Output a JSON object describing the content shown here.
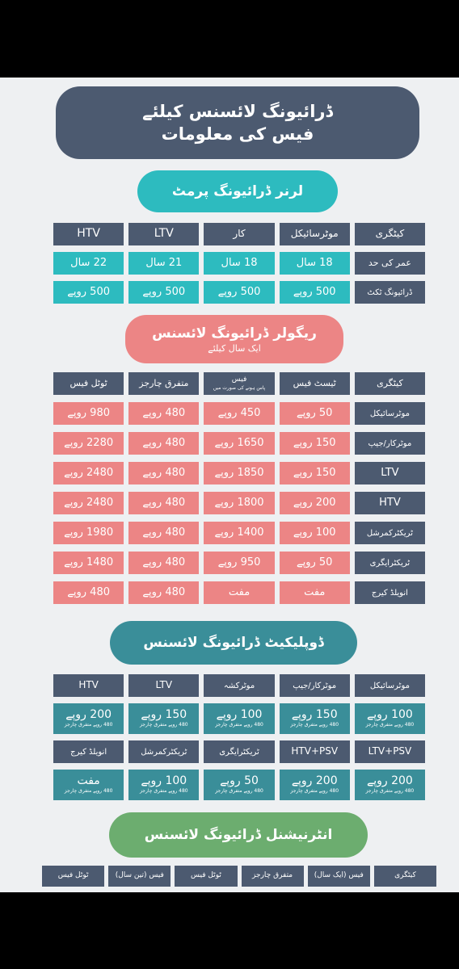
{
  "colors": {
    "slate": "#4c5a70",
    "teal": "#2dbbbf",
    "pink": "#ec8585",
    "teal_dark": "#3a8e99",
    "green": "#6cad6f",
    "background": "#eef0f2"
  },
  "header": {
    "line1": "ڈرائیونگ لائسنس کیلئے",
    "line2": "فیس کی معلومات"
  },
  "learner": {
    "title": "لرنر ڈرائیونگ پرمٹ",
    "rows": [
      [
        "کیٹگری",
        "موٹرسائیکل",
        "کار",
        "LTV",
        "HTV"
      ],
      [
        "عمر کی حد",
        "18 سال",
        "18 سال",
        "21 سال",
        "22 سال"
      ],
      [
        "ڈرائیونگ ٹکٹ",
        "500 روپے",
        "500 روپے",
        "500 روپے",
        "500 روپے"
      ]
    ]
  },
  "regular": {
    "title": "ریگولر ڈرائیونگ لائسنس",
    "subtitle": "ایک سال کیلئے",
    "header": {
      "category": "کیٹگری",
      "test_fee": "ٹیسٹ فیس",
      "fee": "فیس",
      "fee_note": "پاس ہونے کی صورت میں",
      "misc": "متفرق چارجز",
      "total": "ٹوٹل فیس"
    },
    "rows": [
      [
        "موٹرسائیکل",
        "50 روپے",
        "450 روپے",
        "480 روپے",
        "980 روپے"
      ],
      [
        "موٹرکار/جیپ",
        "150 روپے",
        "1650 روپے",
        "480 روپے",
        "2280 روپے"
      ],
      [
        "LTV",
        "150 روپے",
        "1850 روپے",
        "480 روپے",
        "2480 روپے"
      ],
      [
        "HTV",
        "200 روپے",
        "1800 روپے",
        "480 روپے",
        "2480 روپے"
      ],
      [
        "ٹریکٹرکمرشل",
        "100 روپے",
        "1400 روپے",
        "480 روپے",
        "1980 روپے"
      ],
      [
        "ٹریکٹرایگری",
        "50 روپے",
        "950 روپے",
        "480 روپے",
        "1480 روپے"
      ],
      [
        "انویلڈ کیرج",
        "مفت",
        "مفت",
        "480 روپے",
        "480 روپے"
      ]
    ]
  },
  "duplicate": {
    "title": "ڈوپلیکیٹ ڈرائیونگ لائسنس",
    "note": "480 روپے متفرق چارجز",
    "set1": {
      "labels": [
        "موٹرسائیکل",
        "موٹرکار/جیپ",
        "موٹرکشہ",
        "LTV",
        "HTV"
      ],
      "values": [
        "100 روپے",
        "150 روپے",
        "100 روپے",
        "150 روپے",
        "200 روپے"
      ]
    },
    "set2": {
      "labels": [
        "LTV+PSV",
        "HTV+PSV",
        "ٹریکٹرایگری",
        "ٹریکٹرکمرشل",
        "انویلڈ کیرج"
      ],
      "values": [
        "200 روپے",
        "200 روپے",
        "50 روپے",
        "100 روپے",
        "مفت"
      ]
    }
  },
  "international": {
    "title": "انٹرنیشنل ڈرائیونگ لائسنس",
    "header": [
      "کیٹگری",
      "فیس (ایک سال)",
      "متفرق چارجز",
      "ٹوٹل فیس",
      "فیس (تین سال)",
      "ٹوٹل فیس"
    ]
  }
}
